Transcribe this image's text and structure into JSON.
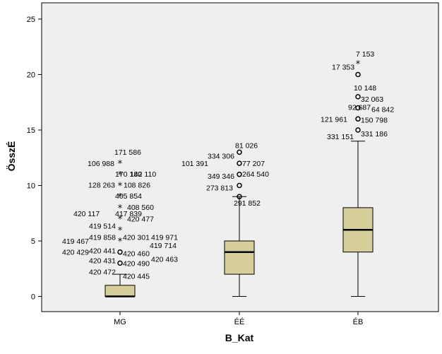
{
  "chart_data": {
    "type": "boxplot",
    "title": "",
    "xlabel": "B_Kat",
    "ylabel": "ÖsszÉ",
    "ylim": [
      -1.5,
      26
    ],
    "yticks": [
      0,
      5,
      10,
      15,
      20,
      25
    ],
    "grid": false,
    "colors": {
      "plot_bg": "#efefef",
      "box_fill": "#d6cf9b",
      "stroke": "#000000"
    },
    "categories": [
      "MG",
      "ÉÉ",
      "ÉB"
    ],
    "boxes": [
      {
        "category": "MG",
        "min": 0,
        "q1": 0,
        "median": 0,
        "q3": 1,
        "max": 2
      },
      {
        "category": "ÉÉ",
        "min": 0,
        "q1": 2,
        "median": 4,
        "q3": 5,
        "max": 9
      },
      {
        "category": "ÉB",
        "min": 0,
        "q1": 4,
        "median": 6,
        "q3": 8,
        "max": 14
      }
    ],
    "outliers": [
      {
        "category": "MG",
        "value": 12,
        "marker": "star",
        "labels": [
          "171 586",
          "106 988"
        ]
      },
      {
        "category": "MG",
        "value": 11,
        "marker": "star",
        "labels": [
          "170 180",
          "142 110"
        ]
      },
      {
        "category": "MG",
        "value": 10,
        "marker": "star",
        "labels": [
          "128 263",
          "108 826"
        ]
      },
      {
        "category": "MG",
        "value": 9,
        "marker": "star",
        "labels": [
          "405 854"
        ]
      },
      {
        "category": "MG",
        "value": 8,
        "marker": "star",
        "labels": [
          "420 117",
          "417 839",
          "408 560"
        ]
      },
      {
        "category": "MG",
        "value": 7,
        "marker": "star",
        "labels": [
          "419 514",
          "420 477"
        ]
      },
      {
        "category": "MG",
        "value": 6,
        "marker": "star",
        "labels": [
          "419 858",
          "420 301",
          "419 971"
        ]
      },
      {
        "category": "MG",
        "value": 5,
        "marker": "star",
        "labels": [
          "419 467",
          "419 714"
        ]
      },
      {
        "category": "MG",
        "value": 4,
        "marker": "circle",
        "labels": [
          "420 429",
          "420 441",
          "420 460",
          "420 463"
        ]
      },
      {
        "category": "MG",
        "value": 3,
        "marker": "circle",
        "labels": [
          "420 431",
          "420 490",
          "420 472",
          "420 445"
        ]
      },
      {
        "category": "ÉÉ",
        "value": 13,
        "marker": "circle",
        "labels": [
          "81 026",
          "334 306"
        ]
      },
      {
        "category": "ÉÉ",
        "value": 12,
        "marker": "circle",
        "labels": [
          "101 391",
          "77 207"
        ]
      },
      {
        "category": "ÉÉ",
        "value": 11,
        "marker": "circle",
        "labels": [
          "349 346",
          "264 540"
        ]
      },
      {
        "category": "ÉÉ",
        "value": 10,
        "marker": "circle",
        "labels": [
          "273 813"
        ]
      },
      {
        "category": "ÉÉ",
        "value": 9,
        "marker": "circle",
        "labels": [
          "291 852"
        ]
      },
      {
        "category": "ÉB",
        "value": 21,
        "marker": "star",
        "labels": [
          "7 153"
        ]
      },
      {
        "category": "ÉB",
        "value": 20,
        "marker": "circle",
        "labels": [
          "17 353"
        ]
      },
      {
        "category": "ÉB",
        "value": 18,
        "marker": "circle",
        "labels": [
          "10 148",
          "32 063"
        ]
      },
      {
        "category": "ÉB",
        "value": 17,
        "marker": "circle",
        "labels": [
          "92 687",
          "64 842"
        ]
      },
      {
        "category": "ÉB",
        "value": 16,
        "marker": "circle",
        "labels": [
          "121 961",
          "150 798"
        ]
      },
      {
        "category": "ÉB",
        "value": 15,
        "marker": "circle",
        "labels": [
          "331 151",
          "331 186"
        ]
      }
    ]
  }
}
